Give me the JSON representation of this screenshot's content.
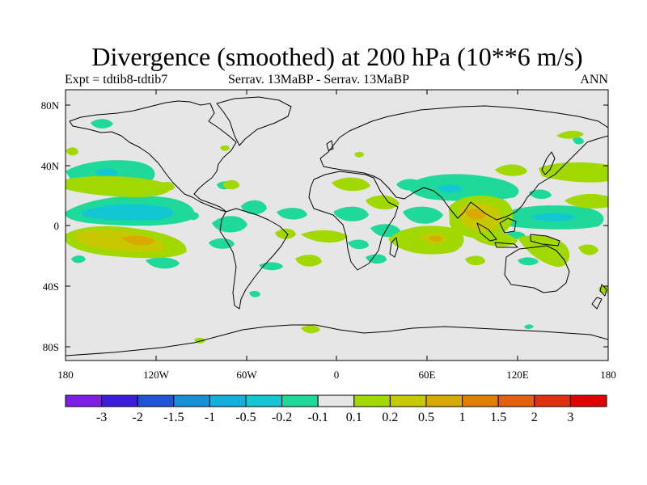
{
  "header": {
    "title": "Divergence (smoothed) at 200 hPa (10**6 m/s)",
    "experiment": "Expt = tdtib8-tdtib7",
    "comparison": "Serrav.   13MaBP - Serrav.   13MaBP",
    "season": "ANN"
  },
  "axes": {
    "lat_labels": [
      "80N",
      "40N",
      "0",
      "40S",
      "80S"
    ],
    "lon_labels": [
      "180",
      "120W",
      "60W",
      "0",
      "60E",
      "120E",
      "180"
    ]
  },
  "colorbar": {
    "colors": [
      "#7f1fe6",
      "#3b1ddc",
      "#1f54d6",
      "#1590d8",
      "#14b0db",
      "#12c7d2",
      "#1ed99a",
      "#e6e6e6",
      "#a0d800",
      "#c8c800",
      "#d8aa00",
      "#e08000",
      "#e06010",
      "#e03010",
      "#e00000"
    ],
    "labels": [
      "-3",
      "-2",
      "-1.5",
      "-1",
      "-0.5",
      "-0.2",
      "-0.1",
      "0.1",
      "0.2",
      "0.5",
      "1",
      "1.5",
      "2",
      "3"
    ]
  },
  "legend_colors": {
    "background": "#e6e6e6",
    "weak_convergence": "#1ed99a",
    "moderate_convergence": "#12c7d2",
    "weak_divergence": "#a0d800",
    "moderate_divergence": "#c8c800",
    "strong_divergence": "#d8aa00"
  }
}
